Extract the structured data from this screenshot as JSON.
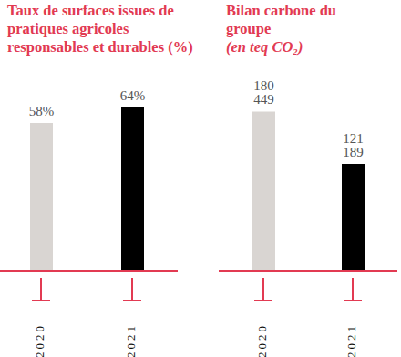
{
  "chart_data": [
    {
      "type": "bar",
      "title": "Taux de surfaces issues de pratiques agricoles responsables et durables (%)",
      "categories": [
        "2020",
        "2021"
      ],
      "values": [
        58,
        64
      ],
      "value_labels": [
        "58%",
        "64%"
      ],
      "colors": [
        "#d9d5d2",
        "#000000"
      ],
      "ylim": [
        0,
        90
      ],
      "data_labels": true,
      "tick_labels": "x"
    },
    {
      "type": "bar",
      "title": "Bilan carbone du groupe",
      "subtitle": "(en teq CO₂)",
      "categories": [
        "2020",
        "2021"
      ],
      "values": [
        180449,
        121189
      ],
      "value_labels": [
        "180 449",
        "121 189"
      ],
      "colors": [
        "#d9d5d2",
        "#000000"
      ],
      "ylim": [
        0,
        260000
      ],
      "data_labels": true,
      "tick_labels": "x"
    }
  ]
}
